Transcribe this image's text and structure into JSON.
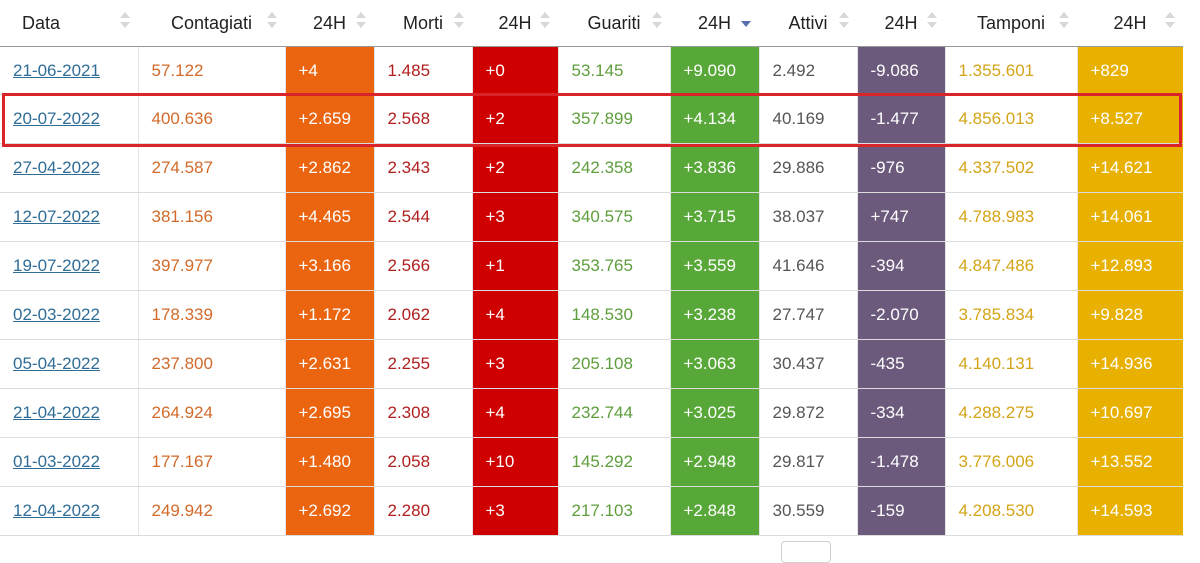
{
  "table": {
    "headers": [
      {
        "label": "Data",
        "sort": "none"
      },
      {
        "label": "Contagiati",
        "sort": "none"
      },
      {
        "label": "24H",
        "sort": "none"
      },
      {
        "label": "Morti",
        "sort": "none"
      },
      {
        "label": "24H",
        "sort": "none"
      },
      {
        "label": "Guariti",
        "sort": "none"
      },
      {
        "label": "24H",
        "sort": "descending"
      },
      {
        "label": "Attivi",
        "sort": "none"
      },
      {
        "label": "24H",
        "sort": "none"
      },
      {
        "label": "Tamponi",
        "sort": "none"
      },
      {
        "label": "24H",
        "sort": "none"
      }
    ],
    "rows": [
      [
        "21-06-2021",
        "57.122",
        "+4",
        "1.485",
        "+0",
        "53.145",
        "+9.090",
        "2.492",
        "-9.086",
        "1.355.601",
        "+829"
      ],
      [
        "20-07-2022",
        "400.636",
        "+2.659",
        "2.568",
        "+2",
        "357.899",
        "+4.134",
        "40.169",
        "-1.477",
        "4.856.013",
        "+8.527"
      ],
      [
        "27-04-2022",
        "274.587",
        "+2.862",
        "2.343",
        "+2",
        "242.358",
        "+3.836",
        "29.886",
        "-976",
        "4.337.502",
        "+14.621"
      ],
      [
        "12-07-2022",
        "381.156",
        "+4.465",
        "2.544",
        "+3",
        "340.575",
        "+3.715",
        "38.037",
        "+747",
        "4.788.983",
        "+14.061"
      ],
      [
        "19-07-2022",
        "397.977",
        "+3.166",
        "2.566",
        "+1",
        "353.765",
        "+3.559",
        "41.646",
        "-394",
        "4.847.486",
        "+12.893"
      ],
      [
        "02-03-2022",
        "178.339",
        "+1.172",
        "2.062",
        "+4",
        "148.530",
        "+3.238",
        "27.747",
        "-2.070",
        "3.785.834",
        "+9.828"
      ],
      [
        "05-04-2022",
        "237.800",
        "+2.631",
        "2.255",
        "+3",
        "205.108",
        "+3.063",
        "30.437",
        "-435",
        "4.140.131",
        "+14.936"
      ],
      [
        "21-04-2022",
        "264.924",
        "+2.695",
        "2.308",
        "+4",
        "232.744",
        "+3.025",
        "29.872",
        "-334",
        "4.288.275",
        "+10.697"
      ],
      [
        "01-03-2022",
        "177.167",
        "+1.480",
        "2.058",
        "+10",
        "145.292",
        "+2.948",
        "29.817",
        "-1.478",
        "3.776.006",
        "+13.552"
      ],
      [
        "12-04-2022",
        "249.942",
        "+2.692",
        "2.280",
        "+3",
        "217.103",
        "+2.848",
        "30.559",
        "-159",
        "4.208.530",
        "+14.593"
      ]
    ],
    "highlighted_row": 1
  },
  "colors": {
    "contagiati": "#eb6511",
    "morti": "#cf0000",
    "guariti": "#58a839",
    "attivi": "#6b5a7c",
    "tamponi": "#e8b100",
    "highlight": "#d9252a",
    "link": "#2f6d96"
  }
}
